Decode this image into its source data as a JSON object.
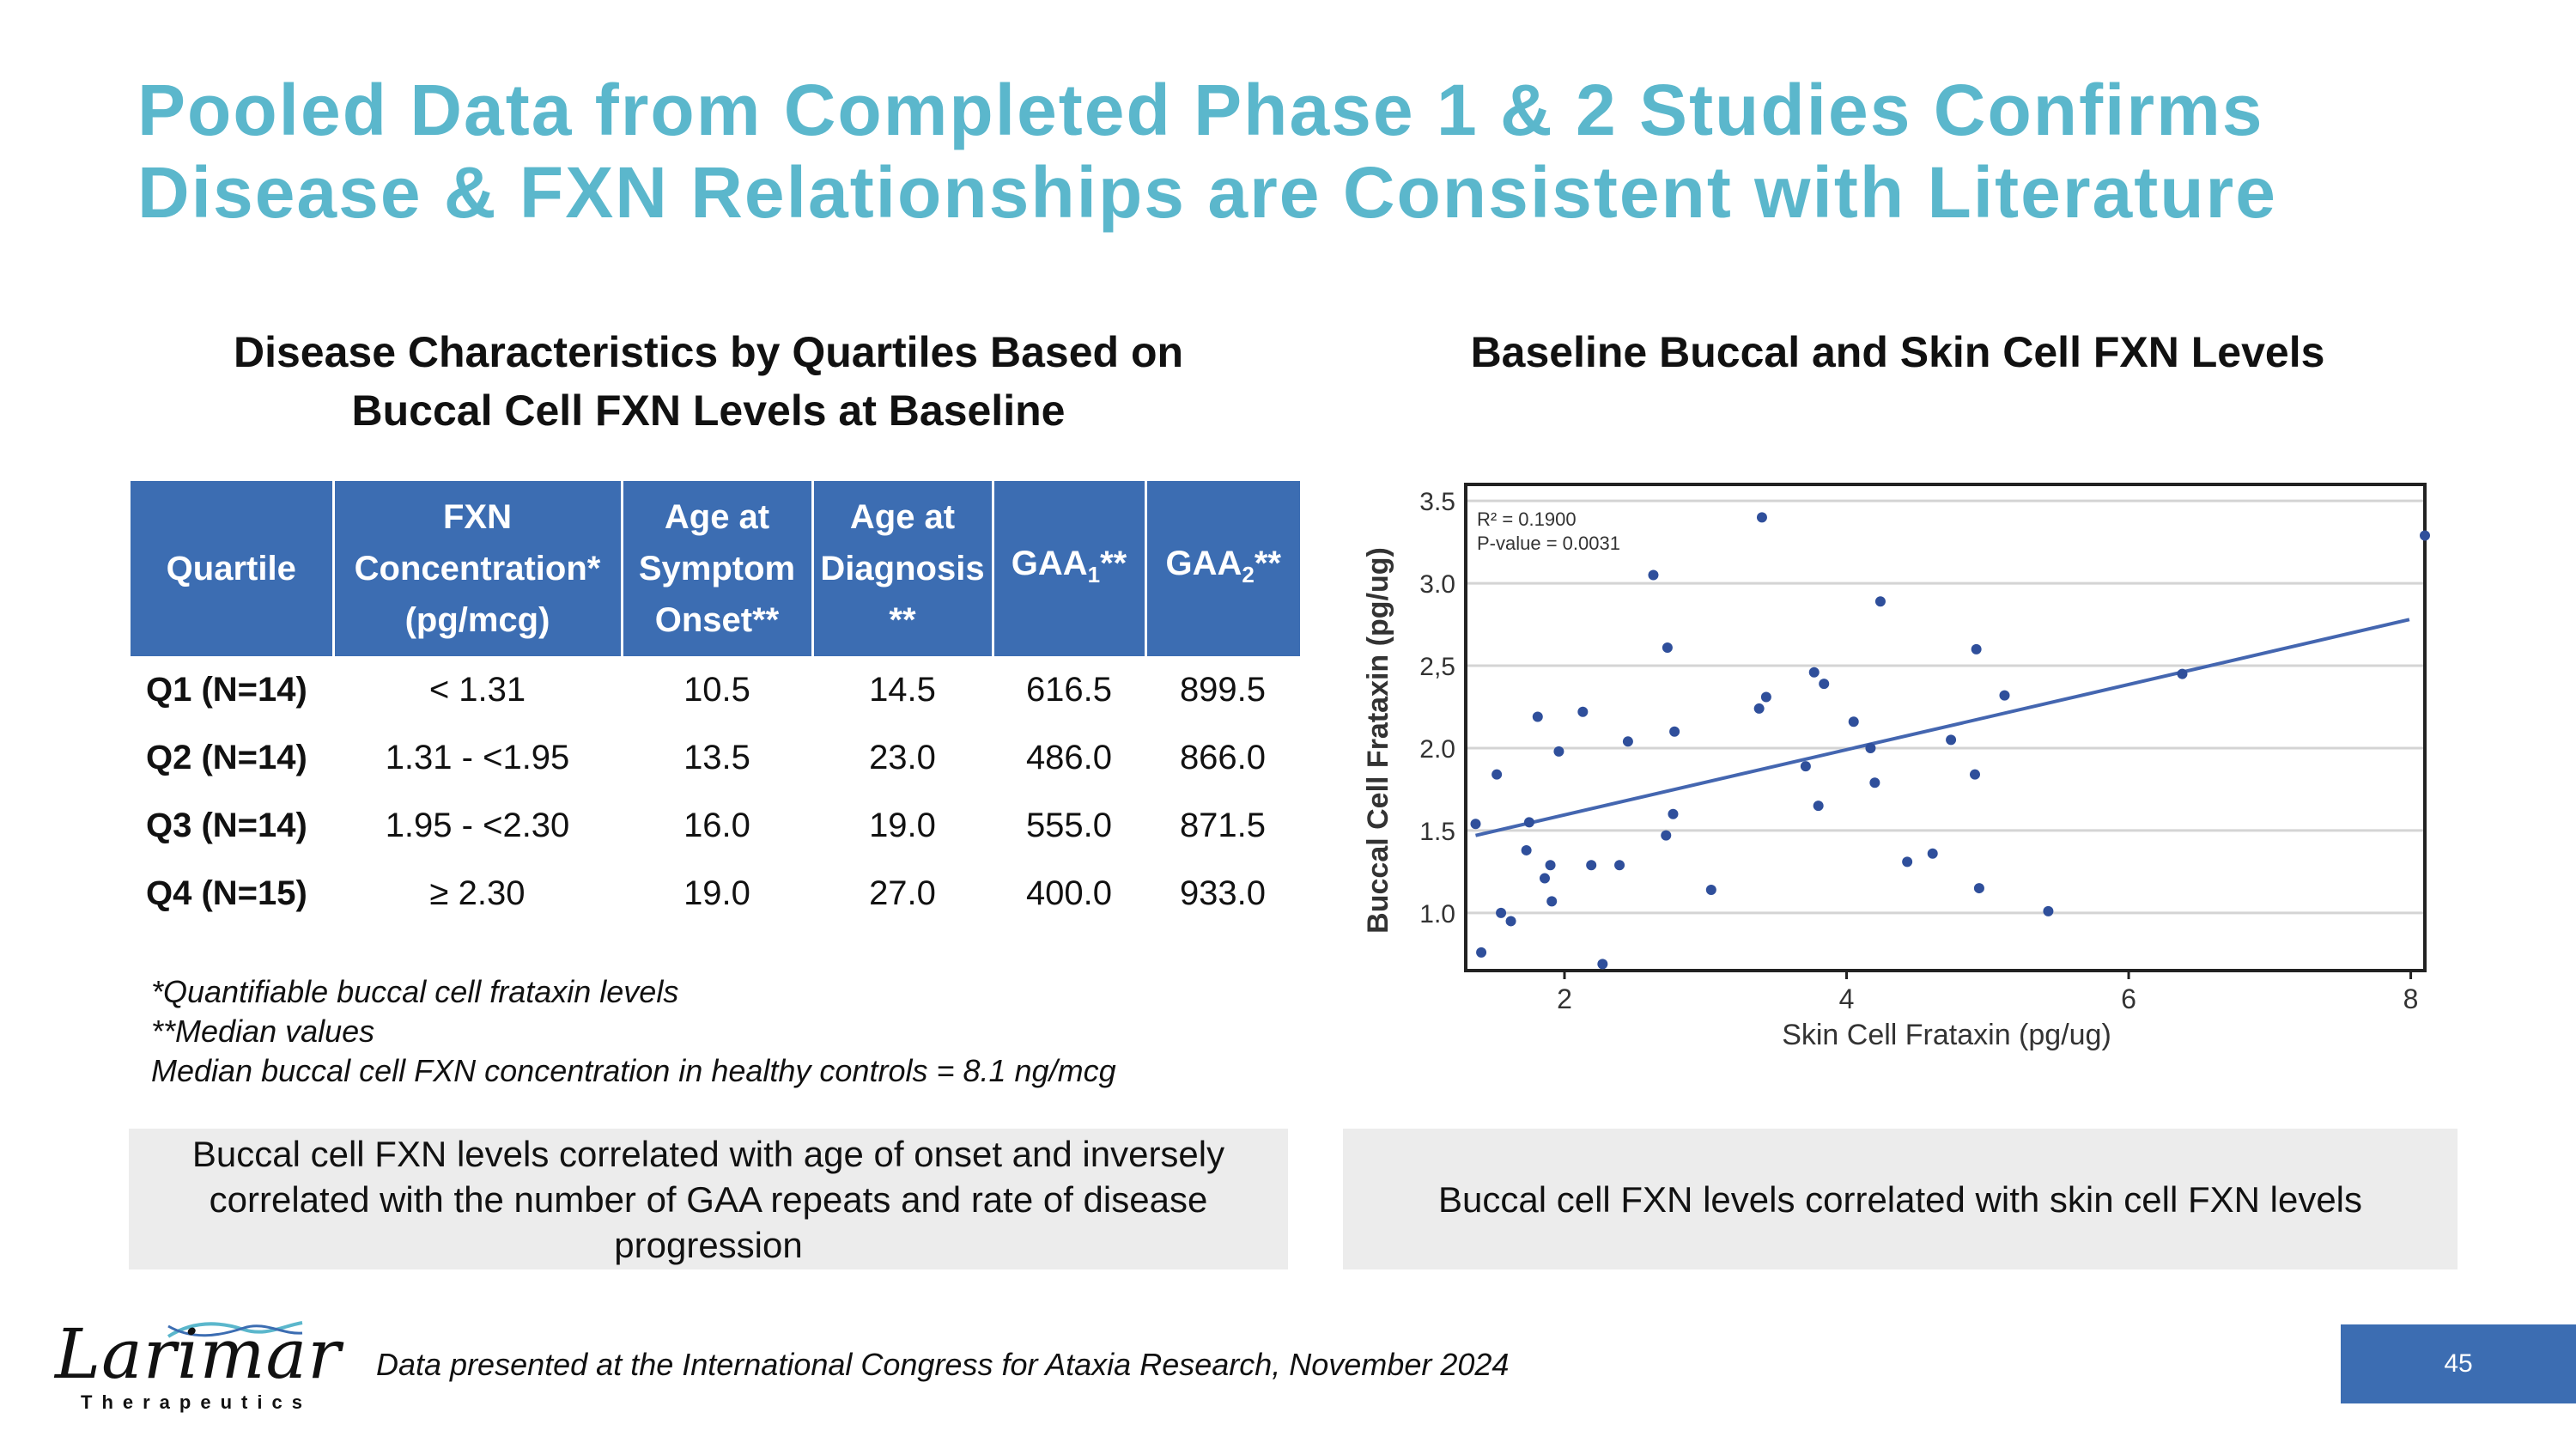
{
  "title": {
    "line1": "Pooled Data from Completed Phase 1 & 2 Studies Confirms",
    "line2": "Disease & FXN Relationships are Consistent with Literature"
  },
  "left": {
    "heading_line1": "Disease Characteristics by Quartiles Based on",
    "heading_line2": "Buccal Cell FXN Levels at Baseline",
    "table": {
      "headers": {
        "quartile": "Quartile",
        "fxn_l1": "FXN",
        "fxn_l2": "Concentration*",
        "fxn_l3": "(pg/mcg)",
        "onset_l1": "Age at",
        "onset_l2": "Symptom",
        "onset_l3": "Onset**",
        "diag_l1": "Age at",
        "diag_l2": "Diagnosis",
        "diag_l3": "**",
        "gaa1_main": "GAA",
        "gaa1_sub": "1",
        "gaa1_tail": "**",
        "gaa2_main": "GAA",
        "gaa2_sub": "2",
        "gaa2_tail": "**"
      },
      "rows": [
        {
          "quartile": "Q1 (N=14)",
          "fxn": "< 1.31",
          "onset": "10.5",
          "diagnosis": "14.5",
          "gaa1": "616.5",
          "gaa2": "899.5"
        },
        {
          "quartile": "Q2 (N=14)",
          "fxn": "1.31 - <1.95",
          "onset": "13.5",
          "diagnosis": "23.0",
          "gaa1": "486.0",
          "gaa2": "866.0"
        },
        {
          "quartile": "Q3 (N=14)",
          "fxn": "1.95 - <2.30",
          "onset": "16.0",
          "diagnosis": "19.0",
          "gaa1": "555.0",
          "gaa2": "871.5"
        },
        {
          "quartile": "Q4 (N=15)",
          "fxn": "≥ 2.30",
          "onset": "19.0",
          "diagnosis": "27.0",
          "gaa1": "400.0",
          "gaa2": "933.0"
        }
      ]
    },
    "notes": [
      "*Quantifiable buccal cell frataxin levels",
      "**Median values",
      "Median buccal cell FXN concentration in healthy controls = 8.1 ng/mcg"
    ],
    "callout": "Buccal cell FXN levels correlated with age of onset and inversely correlated with the number of GAA repeats and rate of disease progression"
  },
  "right": {
    "heading": "Baseline Buccal and Skin Cell FXN Levels",
    "callout": "Buccal cell FXN levels correlated with skin cell FXN levels"
  },
  "chart_data": {
    "type": "scatter",
    "title": "Baseline Buccal and Skin Cell FXN Levels",
    "xlabel": "Skin Cell Frataxin (pg/ug)",
    "ylabel": "Buccal Cell Frataxin (pg/ug)",
    "xlim": [
      1.3,
      8.1
    ],
    "ylim": [
      0.65,
      3.6
    ],
    "xticks": [
      2,
      4,
      6,
      8
    ],
    "xtick_labels": [
      "2",
      "4",
      "6",
      "8"
    ],
    "yticks": [
      1.0,
      1.5,
      2.0,
      2.5,
      3.0,
      3.5
    ],
    "ytick_labels": [
      "1.0",
      "1.5",
      "2.0",
      "2,5",
      "3.0",
      "3.5"
    ],
    "grid": true,
    "stats": [
      "R² = 0.1900",
      "P-value = 0.0031"
    ],
    "trendline": {
      "x": [
        1.37,
        7.99
      ],
      "y": [
        1.47,
        2.78
      ]
    },
    "points": [
      [
        1.37,
        1.54
      ],
      [
        1.41,
        0.76
      ],
      [
        1.52,
        1.84
      ],
      [
        1.55,
        1.0
      ],
      [
        1.62,
        0.95
      ],
      [
        1.73,
        1.38
      ],
      [
        1.75,
        1.55
      ],
      [
        1.81,
        2.19
      ],
      [
        1.86,
        1.21
      ],
      [
        1.9,
        1.29
      ],
      [
        1.91,
        1.07
      ],
      [
        1.96,
        1.98
      ],
      [
        2.13,
        2.22
      ],
      [
        2.19,
        1.29
      ],
      [
        2.27,
        0.69
      ],
      [
        2.39,
        1.29
      ],
      [
        2.45,
        2.04
      ],
      [
        2.63,
        3.05
      ],
      [
        2.72,
        1.47
      ],
      [
        2.73,
        2.61
      ],
      [
        2.77,
        1.6
      ],
      [
        2.78,
        2.1
      ],
      [
        3.04,
        1.14
      ],
      [
        3.38,
        2.24
      ],
      [
        3.4,
        3.4
      ],
      [
        3.43,
        2.31
      ],
      [
        3.71,
        1.89
      ],
      [
        3.77,
        2.46
      ],
      [
        3.8,
        1.65
      ],
      [
        3.84,
        2.39
      ],
      [
        4.05,
        2.16
      ],
      [
        4.17,
        2.0
      ],
      [
        4.2,
        1.79
      ],
      [
        4.24,
        2.89
      ],
      [
        4.43,
        1.31
      ],
      [
        4.61,
        1.36
      ],
      [
        4.74,
        2.05
      ],
      [
        4.91,
        1.84
      ],
      [
        4.92,
        2.6
      ],
      [
        4.94,
        1.15
      ],
      [
        5.12,
        2.32
      ],
      [
        5.43,
        1.01
      ],
      [
        6.38,
        2.45
      ],
      [
        8.1,
        3.29
      ]
    ]
  },
  "footer": {
    "logo_text": "Larimar",
    "logo_sub": "Therapeutics",
    "source": "Data presented at the International Congress for Ataxia Research, November 2024",
    "page": "45"
  },
  "colors": {
    "title": "#5bb7cc",
    "header_fill": "#3c6db2",
    "point": "#2f4f9b",
    "callout_bg": "#ececec"
  }
}
